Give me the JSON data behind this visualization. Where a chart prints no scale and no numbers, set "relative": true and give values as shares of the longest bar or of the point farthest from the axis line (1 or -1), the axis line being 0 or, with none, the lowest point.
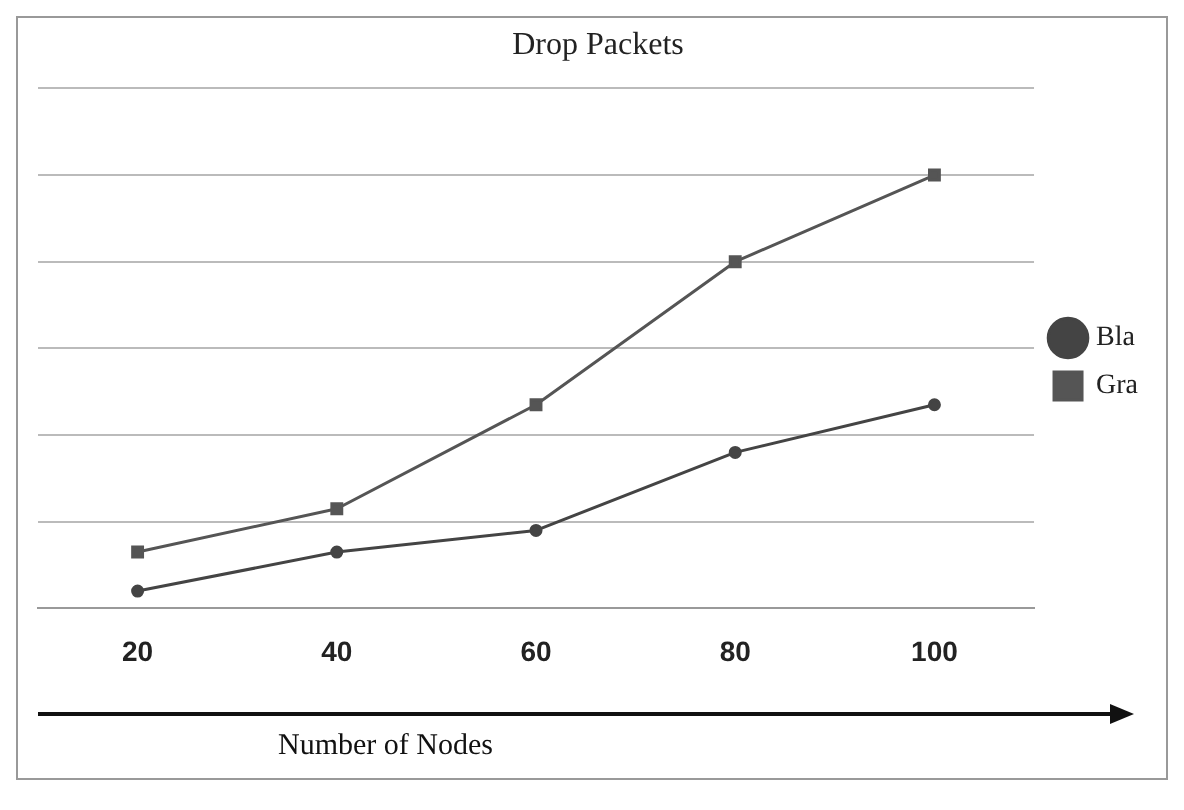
{
  "chart_data": {
    "type": "line",
    "title": "Drop Packets",
    "xlabel": "Number of Nodes",
    "categories": [
      "20",
      "40",
      "60",
      "80",
      "100"
    ],
    "relative": true,
    "grid": "y",
    "legend": "right",
    "series": [
      {
        "name": "Bla",
        "color": "#444444",
        "marker": "circle",
        "values": [
          0.04,
          0.13,
          0.18,
          0.36,
          0.47
        ]
      },
      {
        "name": "Gra",
        "color": "#555555",
        "marker": "square",
        "values": [
          0.13,
          0.23,
          0.47,
          0.8,
          1
        ]
      }
    ]
  }
}
